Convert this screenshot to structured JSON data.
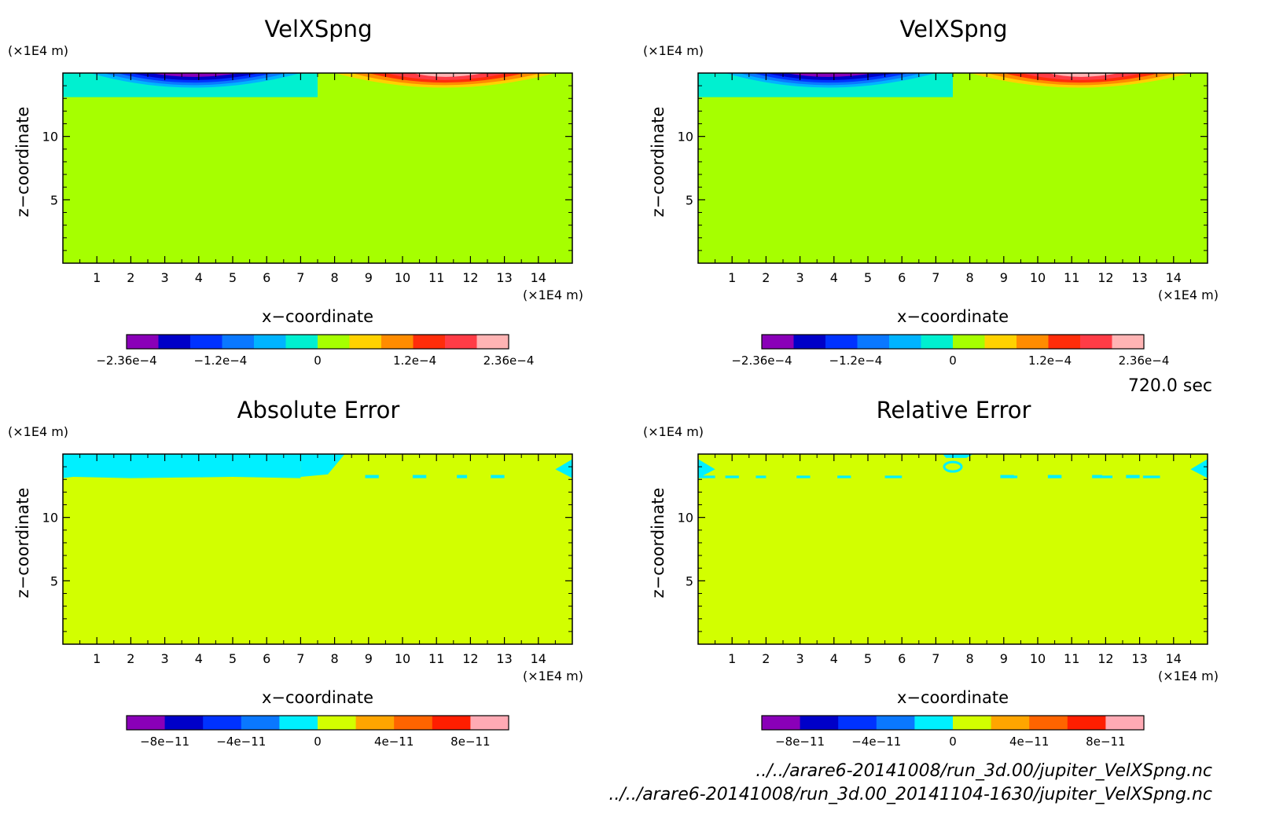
{
  "time_label": "720.0 sec",
  "files": [
    "../../arare6-20141008/run_3d.00/jupiter_VelXSpng.nc",
    "../../arare6-20141008/run_3d.00_20141104-1630/jupiter_VelXSpng.nc"
  ],
  "chart_data": [
    {
      "type": "heatmap",
      "title": "VelXSpng",
      "xlabel": "x−coordinate",
      "ylabel": "z−coordinate",
      "x_unit": "(×1E4 m)",
      "y_unit": "(×1E4 m)",
      "xlim": [
        0,
        15
      ],
      "ylim": [
        0,
        15
      ],
      "x_ticks": [
        "1",
        "2",
        "3",
        "4",
        "5",
        "6",
        "7",
        "8",
        "9",
        "10",
        "11",
        "12",
        "13",
        "14"
      ],
      "y_ticks": [
        "5",
        "10"
      ],
      "colorbar": {
        "colors": [
          "#8a00b8",
          "#0000c8",
          "#0032ff",
          "#0a78ff",
          "#00b4ff",
          "#00f0d0",
          "#a6ff00",
          "#ffd200",
          "#ff8c00",
          "#ff2d0a",
          "#ff3c46",
          "#ffb4b4"
        ],
        "labels": [
          "−2.36e−4",
          "−1.2e−4",
          "0",
          "1.2e−4",
          "2.36e−4"
        ],
        "range": [
          -0.000236,
          0.000236
        ]
      },
      "background_level": 0,
      "note": "Negative velocities in sponge layer over x<7.5, positive over x>7.5, confined to z>13"
    },
    {
      "type": "heatmap",
      "title": "VelXSpng",
      "xlabel": "x−coordinate",
      "ylabel": "z−coordinate",
      "x_unit": "(×1E4 m)",
      "y_unit": "(×1E4 m)",
      "xlim": [
        0,
        15
      ],
      "ylim": [
        0,
        15
      ],
      "x_ticks": [
        "1",
        "2",
        "3",
        "4",
        "5",
        "6",
        "7",
        "8",
        "9",
        "10",
        "11",
        "12",
        "13",
        "14"
      ],
      "y_ticks": [
        "5",
        "10"
      ],
      "colorbar": {
        "colors": [
          "#8a00b8",
          "#0000c8",
          "#0032ff",
          "#0a78ff",
          "#00b4ff",
          "#00f0d0",
          "#a6ff00",
          "#ffd200",
          "#ff8c00",
          "#ff2d0a",
          "#ff3c46",
          "#ffb4b4"
        ],
        "labels": [
          "−2.36e−4",
          "−1.2e−4",
          "0",
          "1.2e−4",
          "2.36e−4"
        ],
        "range": [
          -0.000236,
          0.000236
        ]
      },
      "background_level": 0
    },
    {
      "type": "heatmap",
      "title": "Absolute Error",
      "xlabel": "x−coordinate",
      "ylabel": "z−coordinate",
      "x_unit": "(×1E4 m)",
      "y_unit": "(×1E4 m)",
      "xlim": [
        0,
        15
      ],
      "ylim": [
        0,
        15
      ],
      "x_ticks": [
        "1",
        "2",
        "3",
        "4",
        "5",
        "6",
        "7",
        "8",
        "9",
        "10",
        "11",
        "12",
        "13",
        "14"
      ],
      "y_ticks": [
        "5",
        "10"
      ],
      "colorbar": {
        "colors": [
          "#8a00b8",
          "#0000c8",
          "#0032ff",
          "#0a78ff",
          "#00f0ff",
          "#d2ff00",
          "#ffa500",
          "#ff6400",
          "#ff1e00",
          "#ffaab4"
        ],
        "labels": [
          "−8e−11",
          "−4e−11",
          "0",
          "4e−11",
          "8e−11"
        ],
        "range": [
          -1e-10,
          1e-10
        ]
      },
      "background_level": 0
    },
    {
      "type": "heatmap",
      "title": "Relative Error",
      "xlabel": "x−coordinate",
      "ylabel": "z−coordinate",
      "x_unit": "(×1E4 m)",
      "y_unit": "(×1E4 m)",
      "xlim": [
        0,
        15
      ],
      "ylim": [
        0,
        15
      ],
      "x_ticks": [
        "1",
        "2",
        "3",
        "4",
        "5",
        "6",
        "7",
        "8",
        "9",
        "10",
        "11",
        "12",
        "13",
        "14"
      ],
      "y_ticks": [
        "5",
        "10"
      ],
      "colorbar": {
        "colors": [
          "#8a00b8",
          "#0000c8",
          "#0032ff",
          "#0a78ff",
          "#00f0ff",
          "#d2ff00",
          "#ffa500",
          "#ff6400",
          "#ff1e00",
          "#ffaab4"
        ],
        "labels": [
          "−8e−11",
          "−4e−11",
          "0",
          "4e−11",
          "8e−11"
        ],
        "range": [
          -1e-10,
          1e-10
        ]
      },
      "background_level": 0
    }
  ]
}
